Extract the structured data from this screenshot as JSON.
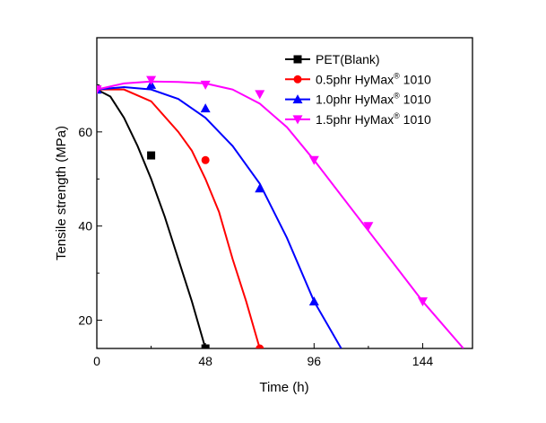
{
  "chart_data": {
    "type": "line",
    "xlabel": "Time (h)",
    "ylabel": "Tensile strength (MPa)",
    "xlim": [
      0,
      166
    ],
    "ylim": [
      14,
      80
    ],
    "xticks": [
      0,
      48,
      96,
      144
    ],
    "xminor": [
      24,
      72,
      120
    ],
    "yticks": [
      20,
      40,
      60
    ],
    "yminor": [
      30,
      50,
      70
    ],
    "grid": false,
    "legend": "top-right",
    "series": [
      {
        "name": "PET(Blank)",
        "sup": "",
        "suffix": "",
        "color": "#000000",
        "marker": "square",
        "points": [
          [
            0,
            69
          ],
          [
            24,
            55
          ],
          [
            48,
            14
          ]
        ],
        "fit": [
          [
            0,
            69
          ],
          [
            6,
            67.5
          ],
          [
            12,
            63
          ],
          [
            18,
            57
          ],
          [
            24,
            50
          ],
          [
            30,
            42
          ],
          [
            36,
            33
          ],
          [
            42,
            24
          ],
          [
            48,
            14
          ]
        ]
      },
      {
        "name": "0.5phr HyMax",
        "sup": "®",
        "suffix": " 1010",
        "color": "#ff0000",
        "marker": "circle",
        "points": [
          [
            0,
            69
          ],
          [
            48,
            54
          ],
          [
            72,
            14
          ]
        ],
        "fit": [
          [
            0,
            69
          ],
          [
            12,
            69
          ],
          [
            24,
            66.5
          ],
          [
            36,
            60
          ],
          [
            42,
            56
          ],
          [
            48,
            50
          ],
          [
            54,
            43
          ],
          [
            60,
            33
          ],
          [
            66,
            24
          ],
          [
            72,
            14
          ]
        ]
      },
      {
        "name": "1.0phr HyMax",
        "sup": "®",
        "suffix": " 1010",
        "color": "#0000ff",
        "marker": "triangle-up",
        "points": [
          [
            0,
            69
          ],
          [
            24,
            70
          ],
          [
            48,
            65
          ],
          [
            72,
            48
          ],
          [
            96,
            24
          ]
        ],
        "fit": [
          [
            0,
            69
          ],
          [
            12,
            69.5
          ],
          [
            24,
            69
          ],
          [
            36,
            67
          ],
          [
            48,
            63
          ],
          [
            60,
            57
          ],
          [
            72,
            49
          ],
          [
            84,
            37.5
          ],
          [
            96,
            24
          ],
          [
            102,
            19
          ],
          [
            108,
            14
          ]
        ]
      },
      {
        "name": "1.5phr HyMax",
        "sup": "®",
        "suffix": " 1010",
        "color": "#ff00ff",
        "marker": "triangle-down",
        "points": [
          [
            0,
            69
          ],
          [
            24,
            71
          ],
          [
            48,
            70
          ],
          [
            72,
            68
          ],
          [
            96,
            54
          ],
          [
            120,
            40
          ],
          [
            144,
            24
          ]
        ],
        "fit": [
          [
            0,
            69
          ],
          [
            12,
            70.3
          ],
          [
            24,
            70.7
          ],
          [
            36,
            70.6
          ],
          [
            48,
            70.3
          ],
          [
            60,
            69
          ],
          [
            72,
            66
          ],
          [
            84,
            61
          ],
          [
            96,
            54
          ],
          [
            108,
            46.5
          ],
          [
            120,
            39
          ],
          [
            132,
            31.5
          ],
          [
            144,
            24
          ],
          [
            153,
            19
          ],
          [
            162,
            14
          ]
        ]
      }
    ]
  }
}
